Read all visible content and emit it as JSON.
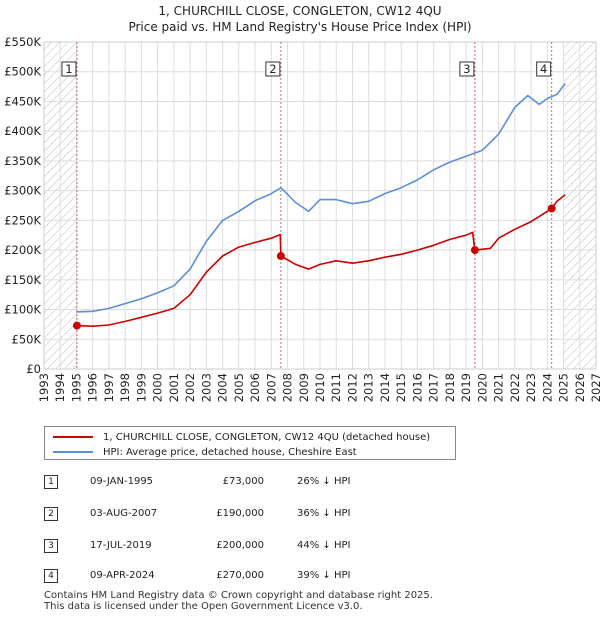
{
  "chart_data": {
    "type": "line",
    "title": "1, CHURCHILL CLOSE, CONGLETON, CW12 4QU",
    "subtitle": "Price paid vs. HM Land Registry's House Price Index (HPI)",
    "xlabel": "",
    "ylabel": "",
    "xlim": [
      1993,
      2027
    ],
    "ylim": [
      0,
      550000
    ],
    "x_ticks": [
      "1993",
      "1994",
      "1995",
      "1996",
      "1997",
      "1998",
      "1999",
      "2000",
      "2001",
      "2002",
      "2003",
      "2004",
      "2005",
      "2006",
      "2007",
      "2008",
      "2009",
      "2010",
      "2011",
      "2012",
      "2013",
      "2014",
      "2015",
      "2016",
      "2017",
      "2018",
      "2019",
      "2020",
      "2021",
      "2022",
      "2023",
      "2024",
      "2025",
      "2026",
      "2027"
    ],
    "y_ticks": [
      {
        "value": 0,
        "label": "£0"
      },
      {
        "value": 50000,
        "label": "£50K"
      },
      {
        "value": 100000,
        "label": "£100K"
      },
      {
        "value": 150000,
        "label": "£150K"
      },
      {
        "value": 200000,
        "label": "£200K"
      },
      {
        "value": 250000,
        "label": "£250K"
      },
      {
        "value": 300000,
        "label": "£300K"
      },
      {
        "value": 350000,
        "label": "£350K"
      },
      {
        "value": 400000,
        "label": "£400K"
      },
      {
        "value": 450000,
        "label": "£450K"
      },
      {
        "value": 500000,
        "label": "£500K"
      },
      {
        "value": 550000,
        "label": "£550K"
      }
    ],
    "grid": true,
    "series": [
      {
        "name": "1, CHURCHILL CLOSE, CONGLETON, CW12 4QU (detached house)",
        "color": "#cc0000",
        "x": [
          1995.03,
          1996,
          1997,
          1998,
          1999,
          2000,
          2001,
          2002,
          2003,
          2004,
          2005,
          2006,
          2007,
          2007.55,
          2007.59,
          2008.5,
          2009.3,
          2010,
          2011,
          2012,
          2013,
          2014,
          2015,
          2016,
          2017,
          2018,
          2019,
          2019.4,
          2019.54,
          2019.58,
          2020.5,
          2021,
          2022,
          2023,
          2024,
          2024.27,
          2024.6,
          2025.1
        ],
        "y": [
          73000,
          72000,
          74000,
          80000,
          87000,
          94000,
          102000,
          125000,
          163000,
          190000,
          205000,
          213000,
          220000,
          226000,
          190000,
          176000,
          168000,
          176000,
          182000,
          178000,
          182000,
          188000,
          193000,
          200000,
          208000,
          218000,
          225000,
          230000,
          200000,
          200000,
          203000,
          220000,
          235000,
          248000,
          265000,
          270000,
          282000,
          293000
        ]
      },
      {
        "name": "HPI: Average price, detached house, Cheshire East",
        "color": "#5b8fd6",
        "x": [
          1995,
          1996,
          1997,
          1998,
          1999,
          2000,
          2001,
          2002,
          2003,
          2004,
          2005,
          2006,
          2007,
          2007.6,
          2008.5,
          2009.3,
          2010,
          2011,
          2012,
          2013,
          2014,
          2015,
          2016,
          2017,
          2018,
          2019,
          2020,
          2021,
          2022,
          2022.8,
          2023.5,
          2024,
          2024.6,
          2025.1
        ],
        "y": [
          96000,
          97000,
          102000,
          110000,
          118000,
          128000,
          140000,
          168000,
          215000,
          250000,
          265000,
          283000,
          295000,
          305000,
          280000,
          265000,
          285000,
          285000,
          278000,
          282000,
          295000,
          305000,
          318000,
          335000,
          348000,
          358000,
          368000,
          395000,
          440000,
          460000,
          445000,
          455000,
          462000,
          480000
        ]
      }
    ],
    "annotations": [
      {
        "label": "1",
        "x": 1995.03,
        "y": 73000
      },
      {
        "label": "2",
        "x": 2007.59,
        "y": 190000
      },
      {
        "label": "3",
        "x": 2019.54,
        "y": 200000
      },
      {
        "label": "4",
        "x": 2024.27,
        "y": 270000
      }
    ],
    "hatched_before": 1995.0,
    "hatched_after": 2025.0,
    "legend_position": "below"
  },
  "legend": {
    "entries": [
      {
        "label": "1, CHURCHILL CLOSE, CONGLETON, CW12 4QU (detached house)",
        "color": "#cc0000"
      },
      {
        "label": "HPI: Average price, detached house, Cheshire East",
        "color": "#5b8fd6"
      }
    ]
  },
  "sales": [
    {
      "num": "1",
      "date": "09-JAN-1995",
      "price": "£73,000",
      "delta": "26% ↓ HPI"
    },
    {
      "num": "2",
      "date": "03-AUG-2007",
      "price": "£190,000",
      "delta": "36% ↓ HPI"
    },
    {
      "num": "3",
      "date": "17-JUL-2019",
      "price": "£200,000",
      "delta": "44% ↓ HPI"
    },
    {
      "num": "4",
      "date": "09-APR-2024",
      "price": "£270,000",
      "delta": "39% ↓ HPI"
    }
  ],
  "footer": {
    "line1": "Contains HM Land Registry data © Crown copyright and database right 2025.",
    "line2": "This data is licensed under the Open Government Licence v3.0."
  }
}
